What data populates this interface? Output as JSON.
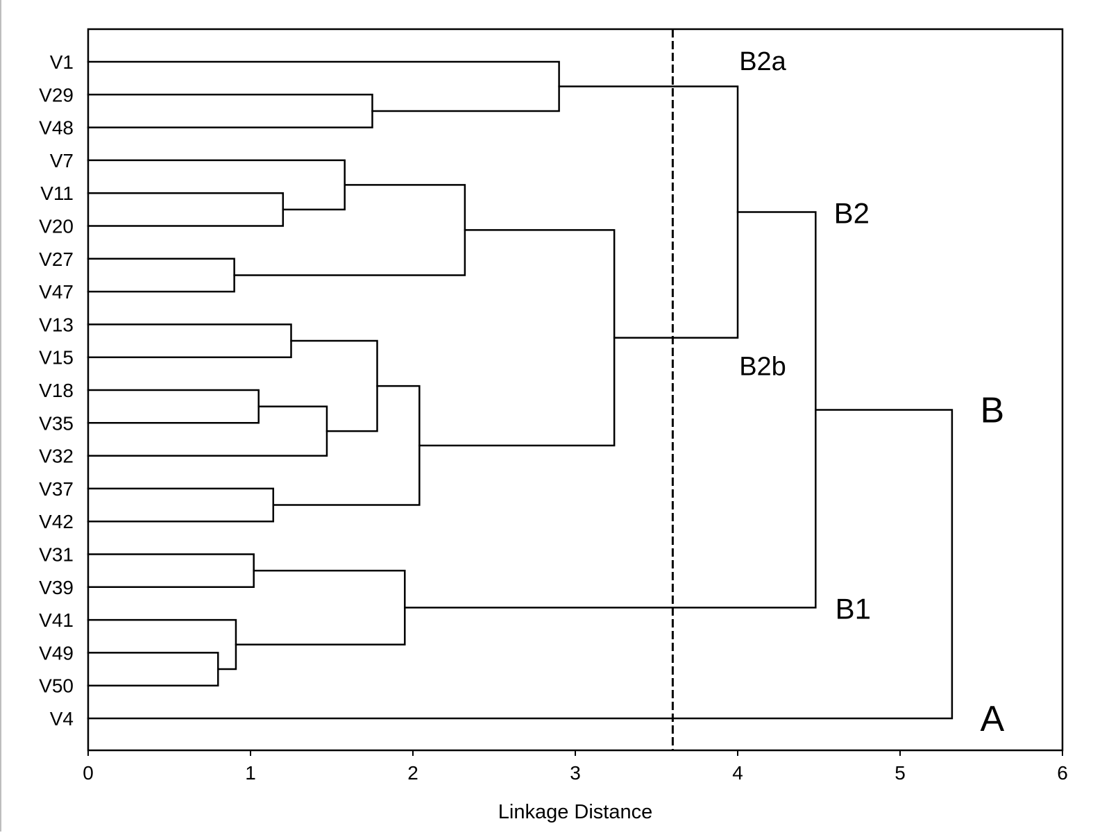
{
  "chart_data": {
    "type": "dendrogram",
    "orientation": "horizontal",
    "xlabel": "Linkage Distance",
    "xlim": [
      0,
      6
    ],
    "xticks": [
      0,
      1,
      2,
      3,
      4,
      5,
      6
    ],
    "grid": false,
    "leaves": [
      "V1",
      "V29",
      "V48",
      "V7",
      "V11",
      "V20",
      "V27",
      "V47",
      "V13",
      "V15",
      "V18",
      "V35",
      "V32",
      "V37",
      "V42",
      "V31",
      "V39",
      "V41",
      "V49",
      "V50",
      "V4"
    ],
    "merges": [
      {
        "id": "m1",
        "left": "V29",
        "right": "V48",
        "distance": 1.75
      },
      {
        "id": "m2",
        "left": "V1",
        "right": "m1",
        "distance": 2.9
      },
      {
        "id": "m3",
        "left": "V11",
        "right": "V20",
        "distance": 1.2
      },
      {
        "id": "m4",
        "left": "V7",
        "right": "m3",
        "distance": 1.58
      },
      {
        "id": "m5",
        "left": "V27",
        "right": "V47",
        "distance": 0.9
      },
      {
        "id": "m6",
        "left": "m4",
        "right": "m5",
        "distance": 2.32
      },
      {
        "id": "m7",
        "left": "V13",
        "right": "V15",
        "distance": 1.25
      },
      {
        "id": "m8",
        "left": "V18",
        "right": "V35",
        "distance": 1.05
      },
      {
        "id": "m9",
        "left": "m8",
        "right": "V32",
        "distance": 1.47
      },
      {
        "id": "m10",
        "left": "m7",
        "right": "m9",
        "distance": 1.78
      },
      {
        "id": "m11",
        "left": "V37",
        "right": "V42",
        "distance": 1.14
      },
      {
        "id": "m12",
        "left": "m10",
        "right": "m11",
        "distance": 2.04
      },
      {
        "id": "m13",
        "left": "m6",
        "right": "m12",
        "distance": 3.24
      },
      {
        "id": "m14",
        "left": "m2",
        "right": "m13",
        "distance": 4.0
      },
      {
        "id": "m15",
        "left": "V31",
        "right": "V39",
        "distance": 1.02
      },
      {
        "id": "m16",
        "left": "V49",
        "right": "V50",
        "distance": 0.8
      },
      {
        "id": "m17",
        "left": "V41",
        "right": "m16",
        "distance": 0.91
      },
      {
        "id": "m18",
        "left": "m15",
        "right": "m17",
        "distance": 1.95
      },
      {
        "id": "m19",
        "left": "m14",
        "right": "m18",
        "distance": 4.48
      },
      {
        "id": "m20",
        "left": "m19",
        "right": "V4",
        "distance": 5.32
      }
    ],
    "cut_line": {
      "distance": 3.6,
      "style": "dashed"
    },
    "cluster_labels": [
      {
        "text": "B2a",
        "merge": "m2",
        "position": "above"
      },
      {
        "text": "B2b",
        "merge": "m13",
        "position": "below"
      },
      {
        "text": "B2",
        "merge": "m14",
        "position": "beside"
      },
      {
        "text": "B1",
        "merge": "m18",
        "position": "beside"
      },
      {
        "text": "B",
        "merge": "m19",
        "position": "beside"
      },
      {
        "text": "A",
        "leaf": "V4",
        "position": "beside"
      }
    ]
  }
}
